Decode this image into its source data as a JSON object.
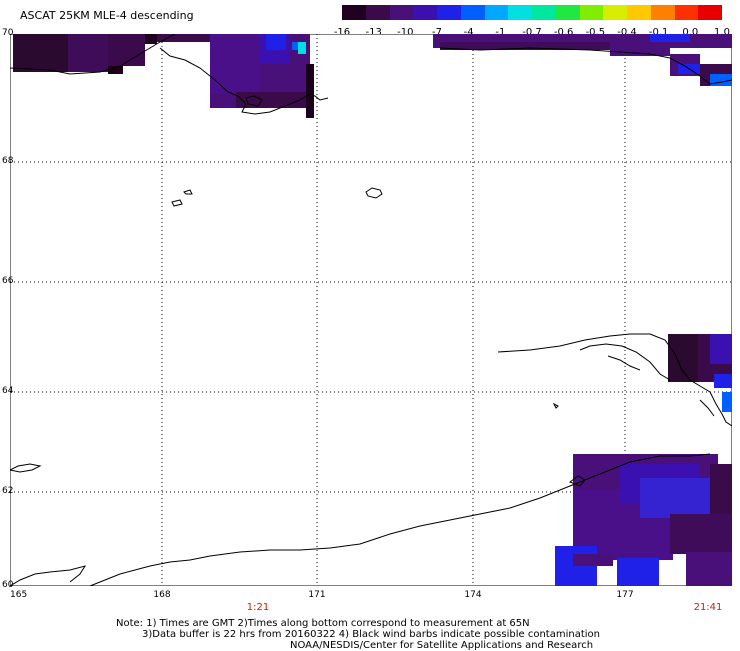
{
  "title": "ASCAT 25KM MLE-4 descending",
  "colorbar": {
    "labels": [
      "-16",
      "-13",
      "-10",
      "-7",
      "-4",
      "-1",
      "-0.7",
      "-0.6",
      "-0.5",
      "-0.4",
      "-0.1",
      "0.0",
      "1.0"
    ],
    "colors": [
      "#200020",
      "#3a0a4a",
      "#4a107a",
      "#3b10b0",
      "#1f20e8",
      "#0060ff",
      "#00a8ff",
      "#00e0e0",
      "#00e8a0",
      "#20e840",
      "#80ee00",
      "#d8ee00",
      "#ffc800",
      "#ff8000",
      "#ff3000",
      "#e80000"
    ]
  },
  "lat_labels": [
    "70",
    "68",
    "66",
    "64",
    "62",
    "60"
  ],
  "lon_labels": [
    "165",
    "168",
    "171",
    "174",
    "177"
  ],
  "times": {
    "left": "1:21",
    "right": "21:41"
  },
  "notes": [
    "Note: 1) Times are GMT 2)Times along bottom correspond to measurement at 65N",
    "3)Data buffer is 22 hrs from 20160322 4) Black wind barbs indicate possible contamination",
    "NOAA/NESDIS/Center for Satellite Applications and Research"
  ]
}
